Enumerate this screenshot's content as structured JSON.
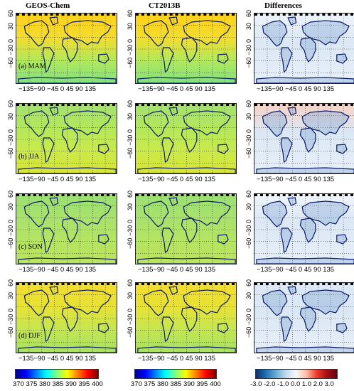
{
  "column_titles": [
    "GEOS-Chem",
    "CT2013B",
    "Differences"
  ],
  "row_labels": [
    "(a) MAM",
    "(b) JJA",
    "(c) SON",
    "(d) DJF"
  ],
  "y_ticks": [
    "60",
    "30",
    "0",
    "−30",
    "−60"
  ],
  "x_ticks": "−135−90 −45   0   45  90  135",
  "colorbars": [
    {
      "ticks": "370 375  380  385  390  395  400"
    },
    {
      "ticks": "370 375  380  385  390  395  400"
    },
    {
      "ticks": "-3.0 -2.0  -1.0  0.0  1.0  2.0  3.0"
    }
  ]
}
